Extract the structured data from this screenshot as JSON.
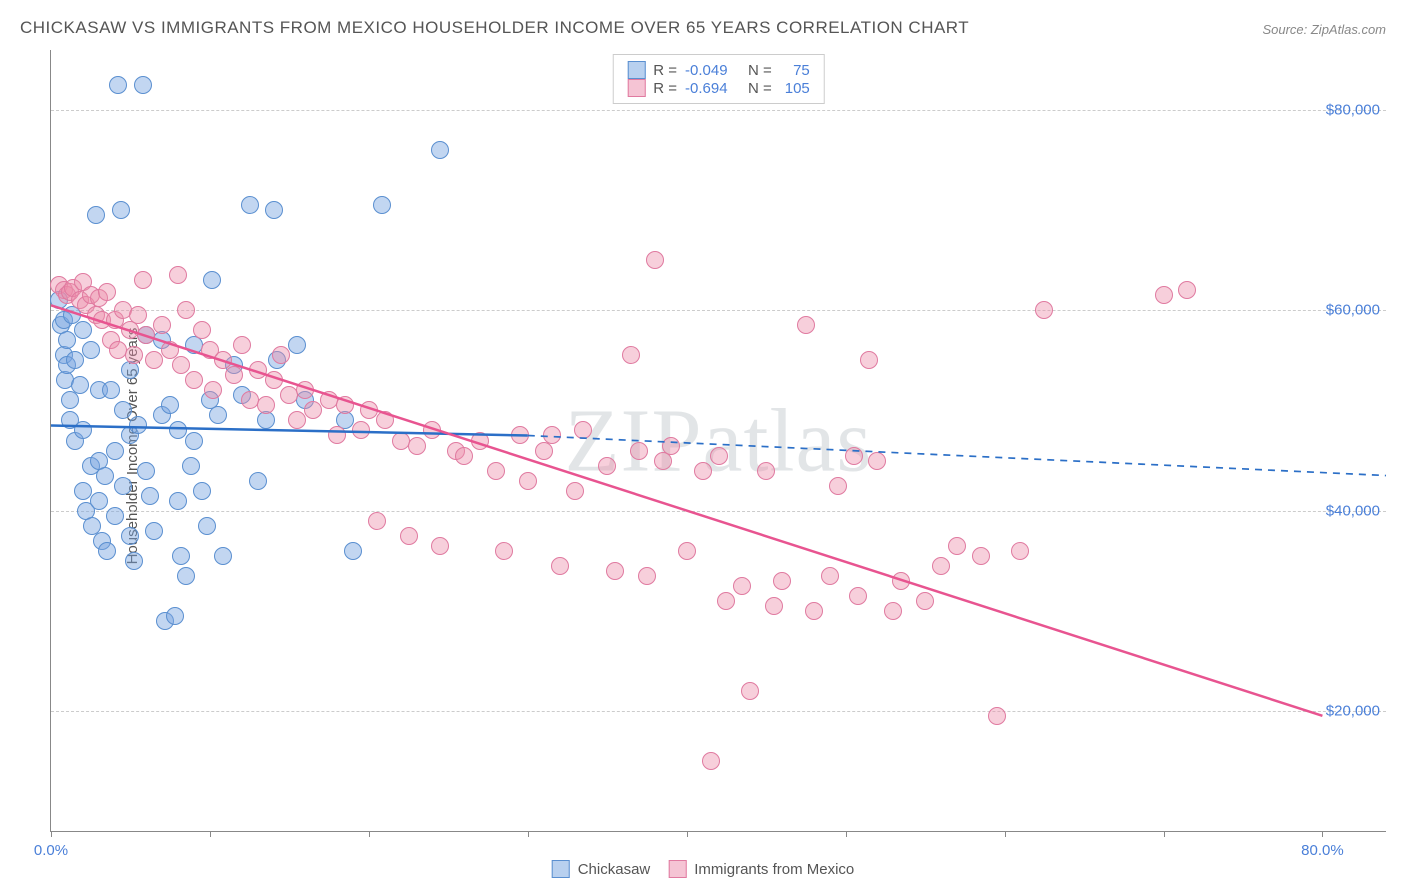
{
  "title": "CHICKASAW VS IMMIGRANTS FROM MEXICO HOUSEHOLDER INCOME OVER 65 YEARS CORRELATION CHART",
  "source": "Source: ZipAtlas.com",
  "watermark": "ZIPatlas",
  "chart": {
    "type": "scatter",
    "ylabel": "Householder Income Over 65 years",
    "xlim": [
      0,
      84
    ],
    "ylim": [
      8000,
      86000
    ],
    "yticks": [
      20000,
      40000,
      60000,
      80000
    ],
    "ytick_labels": [
      "$20,000",
      "$40,000",
      "$60,000",
      "$80,000"
    ],
    "xticks_minor": [
      0,
      10,
      20,
      30,
      40,
      50,
      60,
      70,
      80
    ],
    "xtick_left": "0.0%",
    "xtick_right": "80.0%",
    "grid_color": "#cccccc",
    "background_color": "#ffffff",
    "axis_color": "#888888",
    "tick_label_color": "#4a7fd8",
    "marker_radius": 9,
    "marker_opacity": 0.55,
    "series": [
      {
        "name": "Chickasaw",
        "color_fill": "rgba(120,165,225,0.45)",
        "color_stroke": "#5a8fd0",
        "swatch_fill": "#b8d0ef",
        "swatch_border": "#5a8fd0",
        "R": "-0.049",
        "N": "75",
        "trend": {
          "x1": 0,
          "y1": 48500,
          "x2": 30,
          "y2": 47500,
          "x2_dash": 84,
          "y2_dash": 43500,
          "color": "#2b6fc7",
          "width": 2.5
        },
        "points": [
          [
            0.5,
            61000
          ],
          [
            0.6,
            58500
          ],
          [
            0.8,
            59000
          ],
          [
            0.8,
            55500
          ],
          [
            0.9,
            53000
          ],
          [
            1.0,
            57000
          ],
          [
            1.0,
            54500
          ],
          [
            1.2,
            51000
          ],
          [
            1.2,
            49000
          ],
          [
            1.3,
            59500
          ],
          [
            1.5,
            55000
          ],
          [
            1.5,
            47000
          ],
          [
            1.8,
            52500
          ],
          [
            2.0,
            58000
          ],
          [
            2.0,
            48000
          ],
          [
            2.0,
            42000
          ],
          [
            2.2,
            40000
          ],
          [
            2.5,
            56000
          ],
          [
            2.5,
            44500
          ],
          [
            2.6,
            38500
          ],
          [
            2.8,
            69500
          ],
          [
            3.0,
            52000
          ],
          [
            3.0,
            45000
          ],
          [
            3.0,
            41000
          ],
          [
            3.2,
            37000
          ],
          [
            3.4,
            43500
          ],
          [
            3.5,
            36000
          ],
          [
            3.8,
            52000
          ],
          [
            4.0,
            46000
          ],
          [
            4.0,
            39500
          ],
          [
            4.2,
            82500
          ],
          [
            4.4,
            70000
          ],
          [
            4.5,
            50000
          ],
          [
            4.5,
            42500
          ],
          [
            5.0,
            54000
          ],
          [
            5.0,
            47500
          ],
          [
            5.0,
            37500
          ],
          [
            5.2,
            35000
          ],
          [
            5.5,
            48500
          ],
          [
            5.8,
            82500
          ],
          [
            6.0,
            57500
          ],
          [
            6.0,
            44000
          ],
          [
            6.2,
            41500
          ],
          [
            6.5,
            38000
          ],
          [
            7.0,
            49500
          ],
          [
            7.0,
            57000
          ],
          [
            7.2,
            29000
          ],
          [
            7.5,
            50500
          ],
          [
            7.8,
            29500
          ],
          [
            8.0,
            41000
          ],
          [
            8.0,
            48000
          ],
          [
            8.2,
            35500
          ],
          [
            8.5,
            33500
          ],
          [
            8.8,
            44500
          ],
          [
            9.0,
            56500
          ],
          [
            9.0,
            47000
          ],
          [
            9.5,
            42000
          ],
          [
            9.8,
            38500
          ],
          [
            10.0,
            51000
          ],
          [
            10.1,
            63000
          ],
          [
            10.5,
            49500
          ],
          [
            10.8,
            35500
          ],
          [
            11.5,
            54500
          ],
          [
            12.0,
            51500
          ],
          [
            12.5,
            70500
          ],
          [
            13.0,
            43000
          ],
          [
            13.5,
            49000
          ],
          [
            14.0,
            70000
          ],
          [
            14.2,
            55000
          ],
          [
            15.5,
            56500
          ],
          [
            16.0,
            51000
          ],
          [
            18.5,
            49000
          ],
          [
            19.0,
            36000
          ],
          [
            20.8,
            70500
          ],
          [
            24.5,
            76000
          ]
        ]
      },
      {
        "name": "Immigrants from Mexico",
        "color_fill": "rgba(235,140,170,0.42)",
        "color_stroke": "#e07aa0",
        "swatch_fill": "#f5c4d4",
        "swatch_border": "#e07aa0",
        "R": "-0.694",
        "N": "105",
        "trend": {
          "x1": 0,
          "y1": 60500,
          "x2": 80,
          "y2": 19500,
          "color": "#e85490",
          "width": 2.5
        },
        "points": [
          [
            0.5,
            62500
          ],
          [
            0.8,
            62000
          ],
          [
            1.0,
            61500
          ],
          [
            1.2,
            61800
          ],
          [
            1.4,
            62200
          ],
          [
            1.8,
            61000
          ],
          [
            2.0,
            62800
          ],
          [
            2.2,
            60500
          ],
          [
            2.5,
            61500
          ],
          [
            2.8,
            59500
          ],
          [
            3.0,
            61200
          ],
          [
            3.2,
            59000
          ],
          [
            3.5,
            61800
          ],
          [
            3.8,
            57000
          ],
          [
            4.0,
            59000
          ],
          [
            4.2,
            56000
          ],
          [
            4.5,
            60000
          ],
          [
            5.0,
            58000
          ],
          [
            5.2,
            55500
          ],
          [
            5.5,
            59500
          ],
          [
            5.8,
            63000
          ],
          [
            6.0,
            57500
          ],
          [
            6.5,
            55000
          ],
          [
            7.0,
            58500
          ],
          [
            7.5,
            56000
          ],
          [
            8.0,
            63500
          ],
          [
            8.2,
            54500
          ],
          [
            8.5,
            60000
          ],
          [
            9.0,
            53000
          ],
          [
            9.5,
            58000
          ],
          [
            10.0,
            56000
          ],
          [
            10.2,
            52000
          ],
          [
            10.8,
            55000
          ],
          [
            11.5,
            53500
          ],
          [
            12.0,
            56500
          ],
          [
            12.5,
            51000
          ],
          [
            13.0,
            54000
          ],
          [
            13.5,
            50500
          ],
          [
            14.0,
            53000
          ],
          [
            14.5,
            55500
          ],
          [
            15.0,
            51500
          ],
          [
            15.5,
            49000
          ],
          [
            16.0,
            52000
          ],
          [
            16.5,
            50000
          ],
          [
            17.5,
            51000
          ],
          [
            18.0,
            47500
          ],
          [
            18.5,
            50500
          ],
          [
            19.5,
            48000
          ],
          [
            20.0,
            50000
          ],
          [
            20.5,
            39000
          ],
          [
            21.0,
            49000
          ],
          [
            22.0,
            47000
          ],
          [
            22.5,
            37500
          ],
          [
            23.0,
            46500
          ],
          [
            24.0,
            48000
          ],
          [
            24.5,
            36500
          ],
          [
            25.5,
            46000
          ],
          [
            26.0,
            45500
          ],
          [
            27.0,
            47000
          ],
          [
            28.0,
            44000
          ],
          [
            28.5,
            36000
          ],
          [
            29.5,
            47500
          ],
          [
            30.0,
            43000
          ],
          [
            31.0,
            46000
          ],
          [
            31.5,
            47500
          ],
          [
            32.0,
            34500
          ],
          [
            33.0,
            42000
          ],
          [
            33.5,
            48000
          ],
          [
            35.0,
            44500
          ],
          [
            35.5,
            34000
          ],
          [
            36.5,
            55500
          ],
          [
            37.0,
            46000
          ],
          [
            37.5,
            33500
          ],
          [
            38.0,
            65000
          ],
          [
            38.5,
            45000
          ],
          [
            39.0,
            46500
          ],
          [
            40.0,
            36000
          ],
          [
            41.0,
            44000
          ],
          [
            41.5,
            15000
          ],
          [
            42.0,
            45500
          ],
          [
            42.5,
            31000
          ],
          [
            43.5,
            32500
          ],
          [
            44.0,
            22000
          ],
          [
            45.0,
            44000
          ],
          [
            45.5,
            30500
          ],
          [
            46.0,
            33000
          ],
          [
            47.5,
            58500
          ],
          [
            48.0,
            30000
          ],
          [
            49.0,
            33500
          ],
          [
            49.5,
            42500
          ],
          [
            50.5,
            45500
          ],
          [
            50.8,
            31500
          ],
          [
            51.5,
            55000
          ],
          [
            52.0,
            45000
          ],
          [
            53.0,
            30000
          ],
          [
            53.5,
            33000
          ],
          [
            55.0,
            31000
          ],
          [
            56.0,
            34500
          ],
          [
            57.0,
            36500
          ],
          [
            58.5,
            35500
          ],
          [
            59.5,
            19500
          ],
          [
            61.0,
            36000
          ],
          [
            62.5,
            60000
          ],
          [
            70.0,
            61500
          ],
          [
            71.5,
            62000
          ]
        ]
      }
    ],
    "legend_top": {
      "r_label": "R =",
      "n_label": "N ="
    },
    "legend_bottom_labels": [
      "Chickasaw",
      "Immigrants from Mexico"
    ]
  }
}
